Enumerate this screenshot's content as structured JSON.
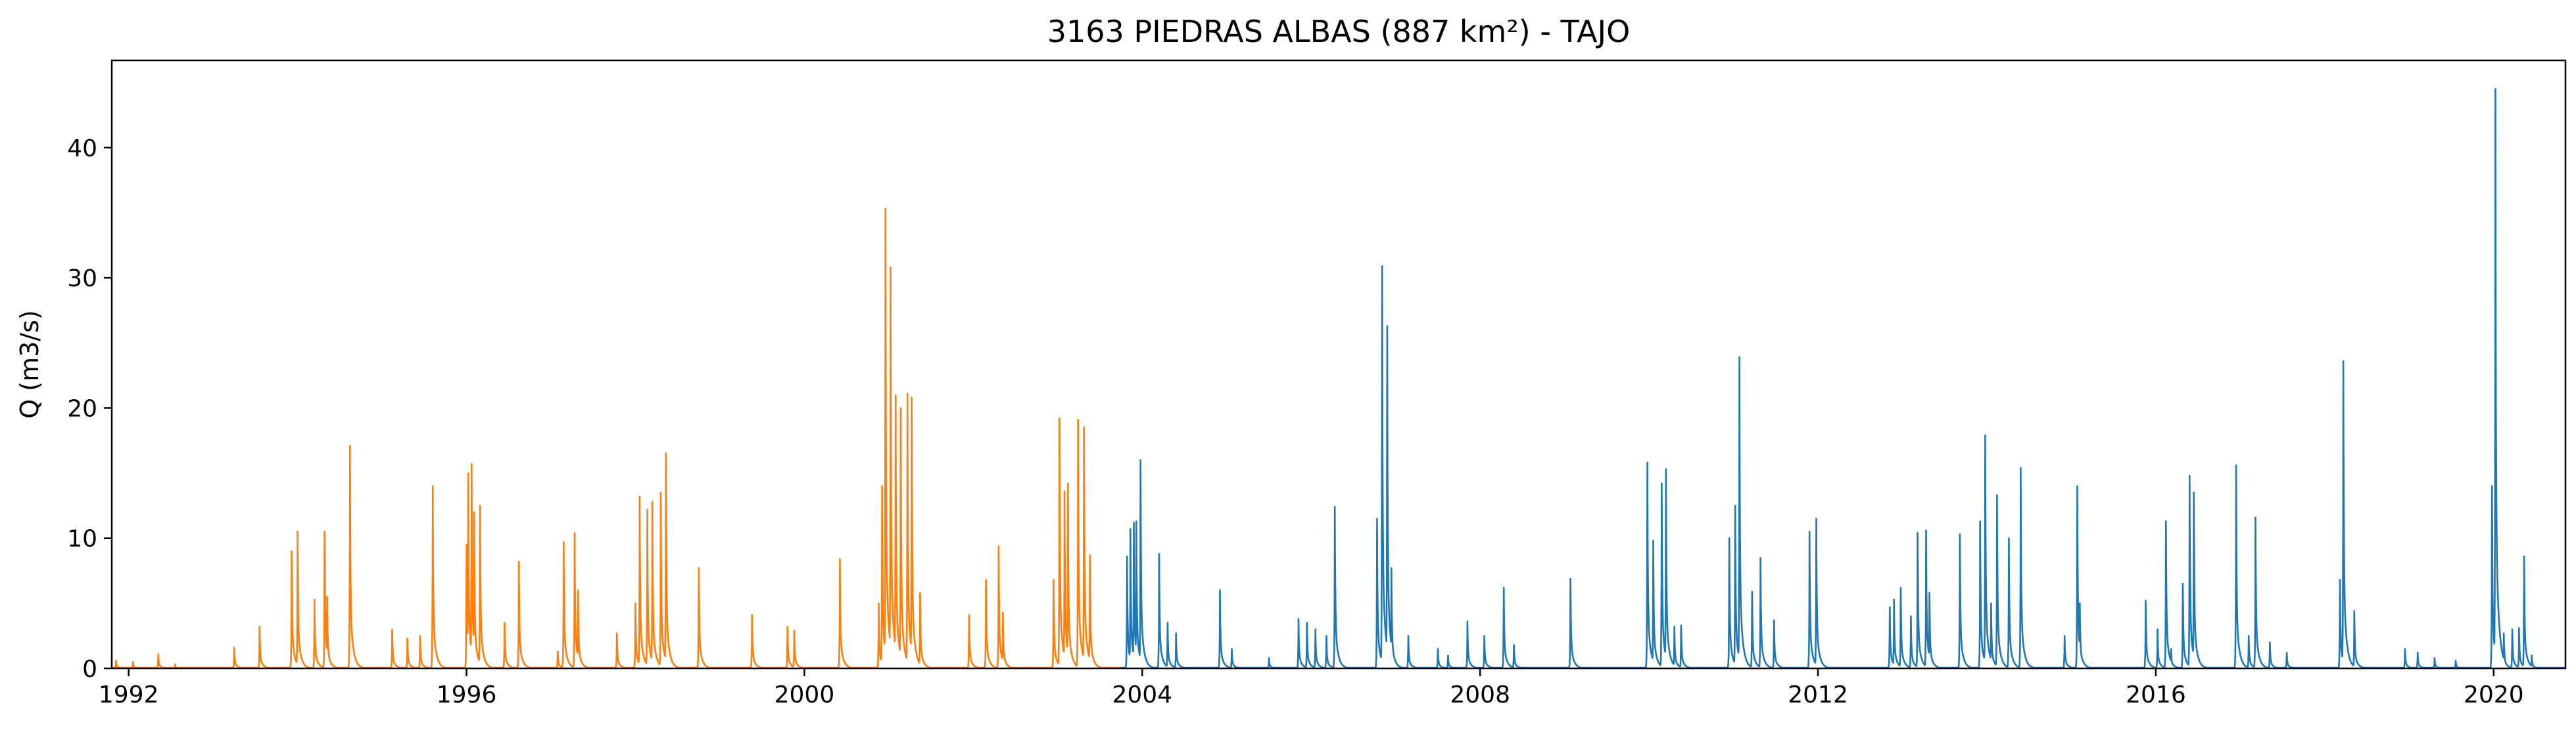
{
  "chart_data": {
    "type": "line",
    "title": "3163 PIEDRAS ALBAS (887 km²) - TAJO",
    "xlabel": "",
    "ylabel": "Q (m3/s)",
    "xlim": [
      1991.8,
      2020.85
    ],
    "ylim": [
      0,
      46.7
    ],
    "grid": false,
    "legend": "none",
    "xticks": [
      1992,
      1996,
      2000,
      2004,
      2008,
      2012,
      2016,
      2020
    ],
    "yticks": [
      0,
      10,
      20,
      30,
      40
    ],
    "series": [
      {
        "color": "#ff7f0e",
        "start": 1991.8,
        "end": 2003.75,
        "baseline": 0.05,
        "events": [
          [
            1991.85,
            0.6
          ],
          [
            1992.05,
            0.5
          ],
          [
            1992.35,
            1.1
          ],
          [
            1992.55,
            0.3
          ],
          [
            1993.25,
            1.6
          ],
          [
            1993.55,
            3.2
          ],
          [
            1993.93,
            9.0
          ],
          [
            1994.0,
            10.5
          ],
          [
            1994.2,
            5.3
          ],
          [
            1994.32,
            10.5
          ],
          [
            1994.35,
            5.5
          ],
          [
            1994.62,
            17.1
          ],
          [
            1995.12,
            3.0
          ],
          [
            1995.3,
            2.3
          ],
          [
            1995.45,
            2.5
          ],
          [
            1995.6,
            14.0
          ],
          [
            1996.0,
            9.5
          ],
          [
            1996.02,
            15.0
          ],
          [
            1996.06,
            15.7
          ],
          [
            1996.09,
            12.0
          ],
          [
            1996.16,
            12.5
          ],
          [
            1996.45,
            3.5
          ],
          [
            1996.62,
            8.2
          ],
          [
            1997.08,
            1.3
          ],
          [
            1997.15,
            9.7
          ],
          [
            1997.28,
            10.4
          ],
          [
            1997.32,
            6.0
          ],
          [
            1997.78,
            2.7
          ],
          [
            1998.0,
            5.0
          ],
          [
            1998.05,
            13.2
          ],
          [
            1998.14,
            12.2
          ],
          [
            1998.2,
            12.8
          ],
          [
            1998.3,
            13.5
          ],
          [
            1998.36,
            16.5
          ],
          [
            1998.75,
            7.7
          ],
          [
            1999.38,
            4.1
          ],
          [
            1999.8,
            3.2
          ],
          [
            1999.88,
            2.9
          ],
          [
            2000.42,
            8.4
          ],
          [
            2000.88,
            5.0
          ],
          [
            2000.92,
            14.0
          ],
          [
            2000.96,
            35.3
          ],
          [
            2001.02,
            30.8
          ],
          [
            2001.08,
            21.0
          ],
          [
            2001.14,
            20.0
          ],
          [
            2001.22,
            21.1
          ],
          [
            2001.27,
            20.8
          ],
          [
            2001.37,
            5.8
          ],
          [
            2001.95,
            4.1
          ],
          [
            2002.15,
            6.8
          ],
          [
            2002.3,
            9.4
          ],
          [
            2002.35,
            4.3
          ],
          [
            2002.95,
            6.8
          ],
          [
            2003.02,
            19.2
          ],
          [
            2003.08,
            13.6
          ],
          [
            2003.12,
            14.2
          ],
          [
            2003.24,
            19.1
          ],
          [
            2003.31,
            18.5
          ],
          [
            2003.38,
            8.7
          ]
        ]
      },
      {
        "color": "#1f77b4",
        "start": 2003.75,
        "end": 2020.85,
        "baseline": 0.05,
        "events": [
          [
            2003.82,
            8.6
          ],
          [
            2003.86,
            10.7
          ],
          [
            2003.9,
            11.2
          ],
          [
            2003.93,
            11.3
          ],
          [
            2003.98,
            16.0
          ],
          [
            2004.2,
            8.8
          ],
          [
            2004.3,
            3.5
          ],
          [
            2004.4,
            2.7
          ],
          [
            2004.92,
            6.0
          ],
          [
            2005.06,
            1.5
          ],
          [
            2005.5,
            0.8
          ],
          [
            2005.85,
            3.8
          ],
          [
            2005.95,
            3.5
          ],
          [
            2006.05,
            3.0
          ],
          [
            2006.18,
            2.5
          ],
          [
            2006.28,
            12.4
          ],
          [
            2006.78,
            11.5
          ],
          [
            2006.84,
            30.9
          ],
          [
            2006.9,
            26.3
          ],
          [
            2006.95,
            7.7
          ],
          [
            2007.15,
            2.5
          ],
          [
            2007.5,
            1.5
          ],
          [
            2007.62,
            1.0
          ],
          [
            2007.85,
            3.6
          ],
          [
            2008.05,
            2.5
          ],
          [
            2008.28,
            6.2
          ],
          [
            2008.4,
            1.8
          ],
          [
            2009.07,
            6.9
          ],
          [
            2009.98,
            15.8
          ],
          [
            2010.05,
            9.8
          ],
          [
            2010.15,
            14.2
          ],
          [
            2010.2,
            15.3
          ],
          [
            2010.3,
            3.2
          ],
          [
            2010.38,
            3.3
          ],
          [
            2010.95,
            10.0
          ],
          [
            2011.02,
            12.5
          ],
          [
            2011.07,
            23.9
          ],
          [
            2011.22,
            5.9
          ],
          [
            2011.32,
            8.5
          ],
          [
            2011.48,
            3.7
          ],
          [
            2011.9,
            10.5
          ],
          [
            2011.98,
            11.5
          ],
          [
            2012.85,
            4.7
          ],
          [
            2012.9,
            5.3
          ],
          [
            2012.98,
            6.2
          ],
          [
            2013.1,
            4.0
          ],
          [
            2013.18,
            10.4
          ],
          [
            2013.28,
            10.6
          ],
          [
            2013.32,
            5.8
          ],
          [
            2013.68,
            10.3
          ],
          [
            2013.92,
            11.3
          ],
          [
            2013.98,
            17.9
          ],
          [
            2014.05,
            5.0
          ],
          [
            2014.12,
            13.3
          ],
          [
            2014.26,
            10.0
          ],
          [
            2014.4,
            15.4
          ],
          [
            2014.92,
            2.5
          ],
          [
            2015.07,
            14.0
          ],
          [
            2015.1,
            5.0
          ],
          [
            2015.88,
            5.2
          ],
          [
            2016.02,
            3.0
          ],
          [
            2016.12,
            11.3
          ],
          [
            2016.18,
            1.5
          ],
          [
            2016.32,
            6.5
          ],
          [
            2016.4,
            14.8
          ],
          [
            2016.45,
            13.5
          ],
          [
            2016.95,
            15.6
          ],
          [
            2017.1,
            2.5
          ],
          [
            2017.18,
            11.6
          ],
          [
            2017.35,
            2.0
          ],
          [
            2017.55,
            1.2
          ],
          [
            2018.18,
            6.8
          ],
          [
            2018.22,
            23.6
          ],
          [
            2018.35,
            4.4
          ],
          [
            2018.95,
            1.5
          ],
          [
            2019.1,
            1.2
          ],
          [
            2019.3,
            0.8
          ],
          [
            2019.55,
            0.6
          ],
          [
            2019.98,
            14.0
          ],
          [
            2020.02,
            44.5
          ],
          [
            2020.12,
            2.7
          ],
          [
            2020.22,
            3.0
          ],
          [
            2020.3,
            3.1
          ],
          [
            2020.36,
            8.6
          ],
          [
            2020.45,
            1.0
          ]
        ]
      }
    ]
  }
}
